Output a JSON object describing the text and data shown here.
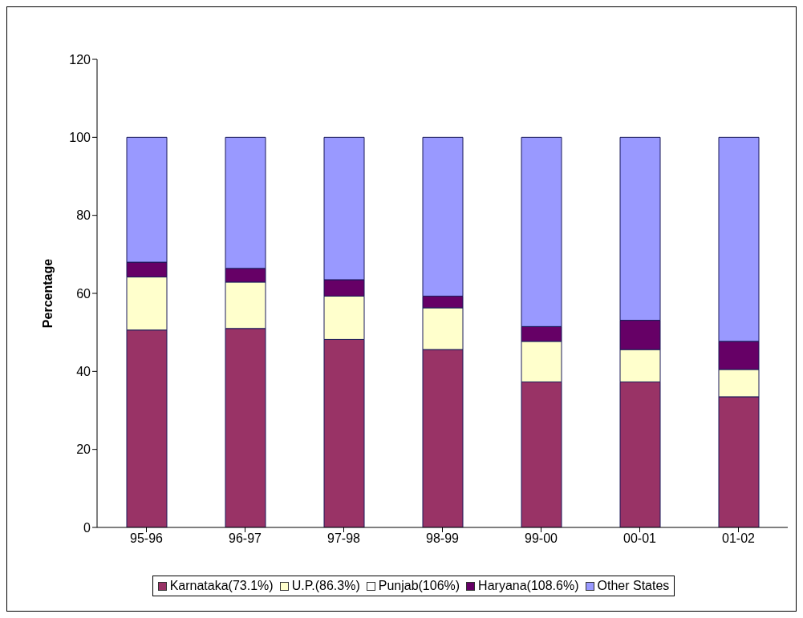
{
  "chart_data": {
    "type": "bar",
    "stacked": true,
    "ylabel": "Percentage",
    "categories": [
      "95-96",
      "96-97",
      "97-98",
      "98-99",
      "99-00",
      "00-01",
      "01-02"
    ],
    "series": [
      {
        "name": "Karnataka(73.1%)",
        "color": "#993366",
        "values": [
          50.6,
          51.0,
          48.2,
          45.6,
          37.3,
          37.3,
          33.5
        ]
      },
      {
        "name": "U.P.(86.3%)",
        "color": "#ffffcc",
        "values": [
          13.6,
          11.9,
          11.1,
          10.7,
          10.4,
          8.3,
          7.0
        ]
      },
      {
        "name": "Punjab(106%)",
        "color": "#ffffff",
        "values": [
          null,
          null,
          null,
          null,
          null,
          null,
          null
        ]
      },
      {
        "name": "Haryana(108.6%)",
        "color": "#660066",
        "values": [
          3.8,
          3.5,
          4.2,
          3.0,
          3.8,
          7.5,
          7.2
        ]
      },
      {
        "name": "Other States",
        "color": "#9999ff",
        "values": [
          32.0,
          33.6,
          36.5,
          40.7,
          48.5,
          46.9,
          52.3
        ]
      }
    ],
    "ylim": [
      0,
      120
    ],
    "yticks": [
      0,
      20,
      40,
      60,
      80,
      100,
      120
    ],
    "grid": false,
    "legend": "bottom"
  }
}
